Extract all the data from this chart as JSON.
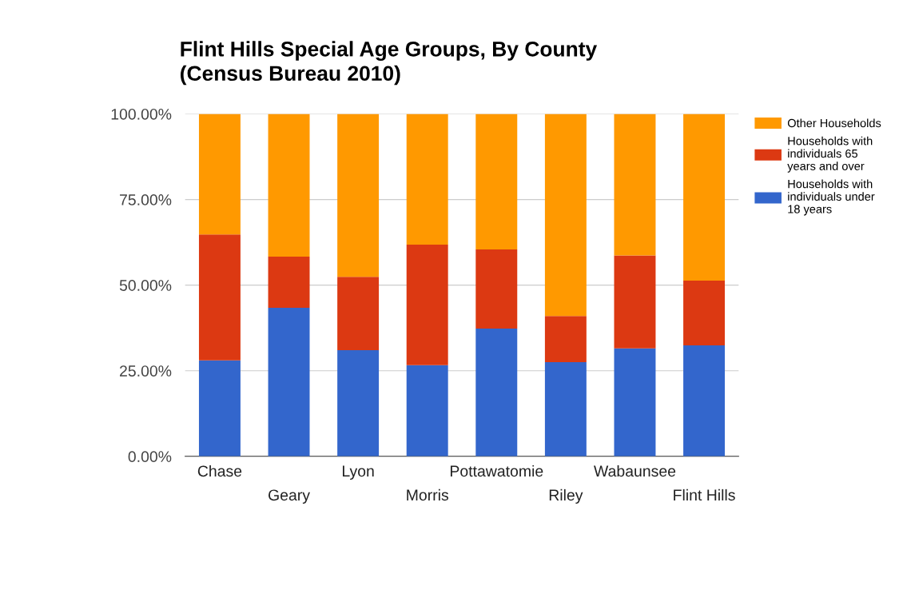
{
  "chart_data": {
    "type": "bar",
    "stacked": true,
    "title": "Flint Hills Special Age Groups, By County\n(Census Bureau 2010)",
    "categories": [
      "Chase",
      "Geary",
      "Lyon",
      "Morris",
      "Pottawatomie",
      "Riley",
      "Wabaunsee",
      "Flint Hills"
    ],
    "series": [
      {
        "name": "Households with individuals under 18 years",
        "color": "#3366cc",
        "values": [
          28.0,
          43.4,
          31.0,
          26.6,
          37.3,
          27.5,
          31.5,
          32.4
        ]
      },
      {
        "name": "Households with individuals 65 years and over",
        "color": "#dc3912",
        "values": [
          36.8,
          14.9,
          21.4,
          35.2,
          23.1,
          13.5,
          27.2,
          18.9
        ]
      },
      {
        "name": "Other Households",
        "color": "#ff9900",
        "values": [
          35.2,
          41.7,
          47.6,
          38.2,
          39.6,
          59.0,
          41.3,
          48.7
        ]
      }
    ],
    "ylim": [
      0,
      100
    ],
    "yticks": [
      {
        "value": 0,
        "label": "0.00%"
      },
      {
        "value": 25,
        "label": "25.00%"
      },
      {
        "value": 50,
        "label": "50.00%"
      },
      {
        "value": 75,
        "label": "75.00%"
      },
      {
        "value": 100,
        "label": "100.00%"
      }
    ],
    "grid": "y",
    "legend": "right"
  }
}
